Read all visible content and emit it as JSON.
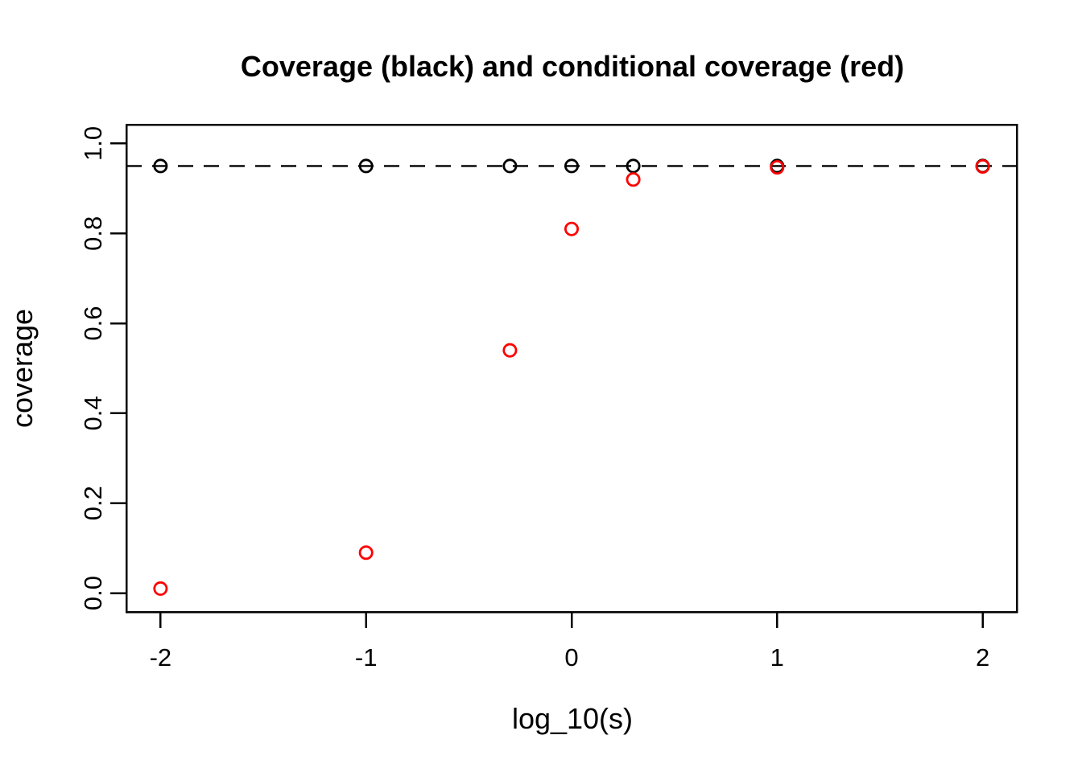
{
  "window": {
    "background_color": "#ffffff"
  },
  "chart_data": {
    "type": "scatter",
    "title": "Coverage (black) and conditional coverage (red)",
    "xlabel": "log_10(s)",
    "ylabel": "coverage",
    "grid": false,
    "legend": "none",
    "plot_style": "r-base-open-circles",
    "colors": {
      "foreground": "#000000",
      "coverage_series": "#000000",
      "conditional_series": "#ff0000",
      "background": "#ffffff"
    },
    "axes": {
      "x": {
        "tick_values": [
          -2,
          -1,
          0,
          1,
          2
        ],
        "tick_labels": [
          "-2",
          "-1",
          "0",
          "1",
          "2"
        ],
        "range": [
          -2.166,
          2.166
        ]
      },
      "y": {
        "tick_values": [
          0.0,
          0.2,
          0.4,
          0.6,
          0.8,
          1.0
        ],
        "tick_labels": [
          "0.0",
          "0.2",
          "0.4",
          "0.6",
          "0.8",
          "1.0"
        ],
        "range": [
          -0.042,
          1.042
        ]
      }
    },
    "reference_line": {
      "y": 0.95,
      "style": "dashed",
      "color": "#000000"
    },
    "series": [
      {
        "name": "coverage (black)",
        "color": "#000000",
        "marker": "open-circle",
        "x": [
          -2,
          -1,
          -0.3,
          0,
          0.3,
          1,
          2
        ],
        "y": [
          0.95,
          0.95,
          0.95,
          0.95,
          0.95,
          0.95,
          0.95
        ]
      },
      {
        "name": "conditional coverage (red)",
        "color": "#ff0000",
        "marker": "open-circle",
        "x": [
          -2,
          -1,
          -0.3,
          0,
          0.3,
          1,
          2
        ],
        "y": [
          0.01,
          0.09,
          0.54,
          0.81,
          0.92,
          0.947,
          0.949
        ]
      }
    ]
  }
}
